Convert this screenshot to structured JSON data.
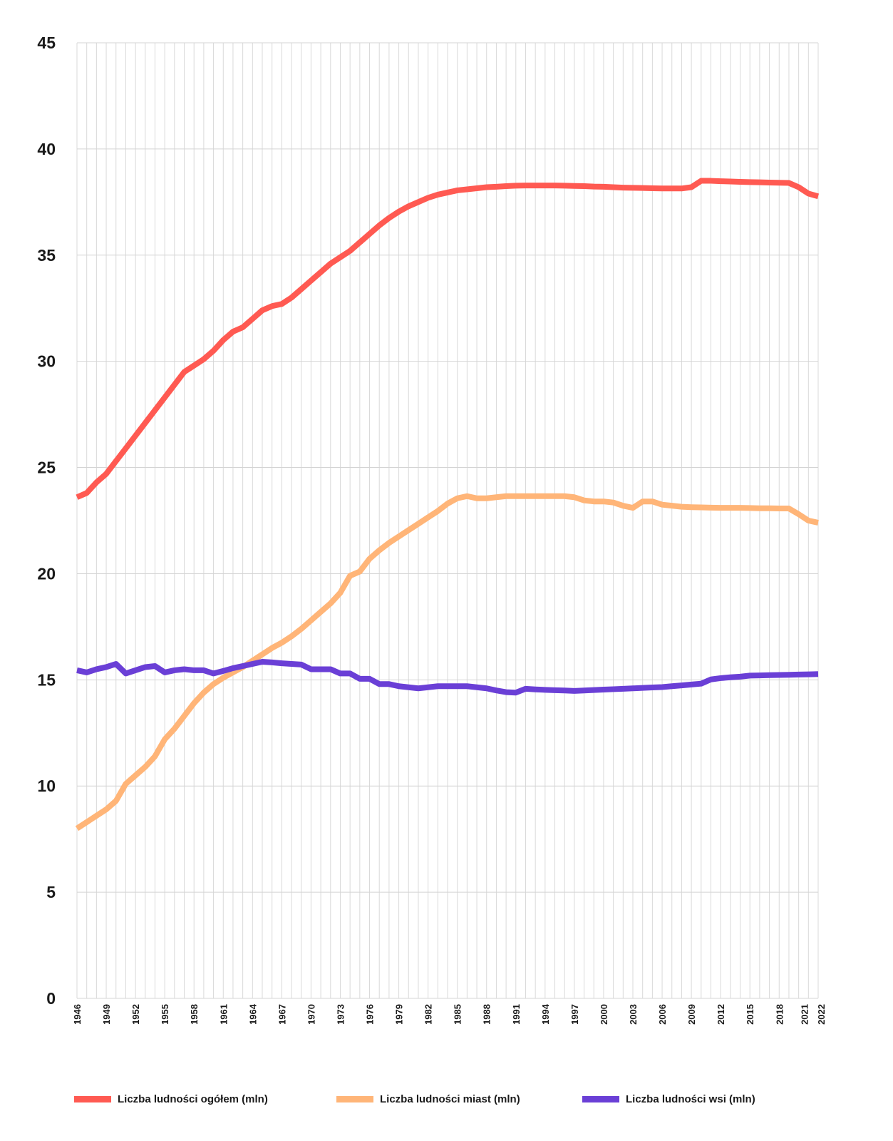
{
  "chart_data": {
    "type": "line",
    "title": "",
    "xlabel": "",
    "ylabel": "",
    "ylim": [
      0,
      45
    ],
    "yticks": [
      0,
      5,
      10,
      15,
      20,
      25,
      30,
      35,
      40,
      45
    ],
    "xlim": [
      1946,
      2022
    ],
    "xtick_labels": [
      "1946",
      "1949",
      "1952",
      "1955",
      "1958",
      "1961",
      "1964",
      "1967",
      "1970",
      "1973",
      "1976",
      "1979",
      "1982",
      "1985",
      "1988",
      "1991",
      "1994",
      "1997",
      "2000",
      "2003",
      "2006",
      "2009",
      "2012",
      "2015",
      "2018",
      "2021",
      "2022"
    ],
    "grid": true,
    "legend_position": "bottom",
    "x": [
      1946,
      1947,
      1948,
      1949,
      1950,
      1951,
      1952,
      1953,
      1954,
      1955,
      1956,
      1957,
      1958,
      1959,
      1960,
      1961,
      1962,
      1963,
      1964,
      1965,
      1966,
      1967,
      1968,
      1969,
      1970,
      1971,
      1972,
      1973,
      1974,
      1975,
      1976,
      1977,
      1978,
      1979,
      1980,
      1981,
      1982,
      1983,
      1984,
      1985,
      1986,
      1987,
      1988,
      1989,
      1990,
      1991,
      1992,
      1993,
      1994,
      1995,
      1996,
      1997,
      1998,
      1999,
      2000,
      2001,
      2002,
      2003,
      2004,
      2005,
      2006,
      2007,
      2008,
      2009,
      2010,
      2011,
      2012,
      2013,
      2014,
      2015,
      2016,
      2017,
      2018,
      2019,
      2020,
      2021,
      2022
    ],
    "series": [
      {
        "name": "Liczba ludności ogółem (mln)",
        "color": "#ff5a52",
        "values": [
          23.6,
          23.8,
          24.3,
          24.7,
          25.3,
          25.9,
          26.5,
          27.1,
          27.7,
          28.3,
          28.9,
          29.5,
          29.8,
          30.1,
          30.5,
          31.0,
          31.4,
          31.6,
          32.0,
          32.4,
          32.6,
          32.7,
          33.0,
          33.4,
          33.8,
          34.2,
          34.6,
          34.9,
          35.2,
          35.6,
          36.0,
          36.4,
          36.75,
          37.05,
          37.3,
          37.5,
          37.7,
          37.85,
          37.95,
          38.05,
          38.1,
          38.15,
          38.2,
          38.22,
          38.25,
          38.27,
          38.28,
          38.28,
          38.28,
          38.28,
          38.27,
          38.26,
          38.25,
          38.23,
          38.22,
          38.2,
          38.18,
          38.17,
          38.16,
          38.15,
          38.14,
          38.14,
          38.14,
          38.2,
          38.5,
          38.5,
          38.48,
          38.47,
          38.45,
          38.44,
          38.43,
          38.42,
          38.41,
          38.4,
          38.2,
          37.9,
          37.77
        ]
      },
      {
        "name": "Liczba ludności miast (mln)",
        "color": "#ffb578",
        "values": [
          8.0,
          8.3,
          8.6,
          8.9,
          9.3,
          10.1,
          10.5,
          10.9,
          11.4,
          12.2,
          12.7,
          13.3,
          13.9,
          14.4,
          14.8,
          15.1,
          15.35,
          15.6,
          15.9,
          16.2,
          16.5,
          16.75,
          17.05,
          17.4,
          17.8,
          18.2,
          18.6,
          19.1,
          19.9,
          20.1,
          20.7,
          21.1,
          21.45,
          21.75,
          22.05,
          22.35,
          22.65,
          22.95,
          23.3,
          23.55,
          23.65,
          23.55,
          23.55,
          23.6,
          23.65,
          23.65,
          23.65,
          23.65,
          23.65,
          23.65,
          23.65,
          23.6,
          23.45,
          23.4,
          23.4,
          23.35,
          23.2,
          23.1,
          23.4,
          23.4,
          23.25,
          23.2,
          23.15,
          23.13,
          23.12,
          23.11,
          23.1,
          23.1,
          23.1,
          23.09,
          23.08,
          23.08,
          23.07,
          23.07,
          22.8,
          22.5,
          22.4
        ]
      },
      {
        "name": "Liczba ludności wsi (mln)",
        "color": "#6a3fd6",
        "values": [
          15.45,
          15.35,
          15.5,
          15.6,
          15.75,
          15.3,
          15.45,
          15.6,
          15.65,
          15.35,
          15.45,
          15.5,
          15.45,
          15.45,
          15.3,
          15.42,
          15.55,
          15.65,
          15.75,
          15.85,
          15.82,
          15.78,
          15.75,
          15.72,
          15.5,
          15.5,
          15.5,
          15.3,
          15.3,
          15.05,
          15.05,
          14.8,
          14.8,
          14.7,
          14.65,
          14.6,
          14.65,
          14.7,
          14.7,
          14.7,
          14.7,
          14.65,
          14.6,
          14.5,
          14.42,
          14.4,
          14.58,
          14.55,
          14.53,
          14.51,
          14.5,
          14.48,
          14.5,
          14.52,
          14.54,
          14.56,
          14.58,
          14.6,
          14.62,
          14.64,
          14.66,
          14.7,
          14.74,
          14.78,
          14.82,
          15.02,
          15.08,
          15.12,
          15.15,
          15.2,
          15.21,
          15.22,
          15.23,
          15.24,
          15.25,
          15.26,
          15.27
        ]
      }
    ]
  }
}
